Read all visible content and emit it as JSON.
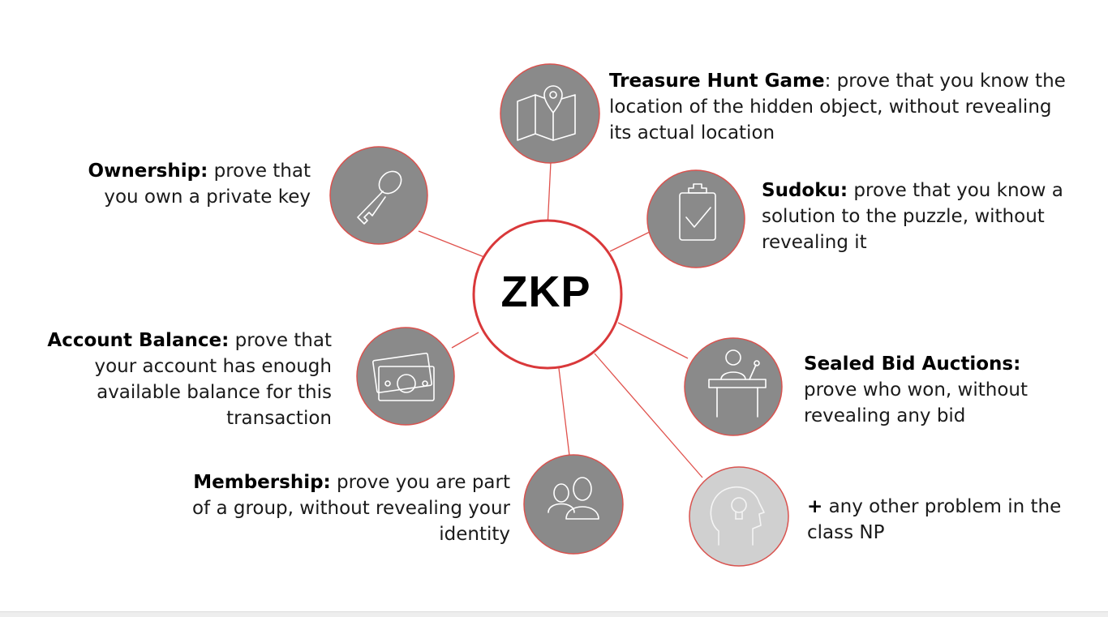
{
  "center": {
    "label": "ZKP"
  },
  "items": {
    "treasure": {
      "term": "Treasure Hunt Game",
      "text": ": prove that you know the location of the hidden object, without revealing its actual location",
      "icon": "map-pin-icon"
    },
    "ownership": {
      "term": "Ownership:",
      "text": " prove that you own a private key",
      "icon": "key-icon"
    },
    "sudoku": {
      "term": "Sudoku:",
      "text": " prove that you know a solution to the puzzle, without revealing it",
      "icon": "clipboard-check-icon"
    },
    "balance": {
      "term": "Account Balance:",
      "text": " prove that your account has enough available balance for this transaction",
      "icon": "banknote-icon"
    },
    "auction": {
      "term": "Sealed Bid Auctions:",
      "text": "prove who won, without revealing any bid",
      "icon": "speaker-podium-icon"
    },
    "membership": {
      "term": "Membership:",
      "text": " prove you are part of a group, without revealing your identity",
      "icon": "people-icon"
    },
    "other": {
      "term": "+",
      "text": " any other problem in the class NP",
      "icon": "lightbulb-head-icon"
    }
  },
  "colors": {
    "accent": "#e0524d",
    "node": "#8a8a8a",
    "node_light": "#d0d0d0"
  }
}
